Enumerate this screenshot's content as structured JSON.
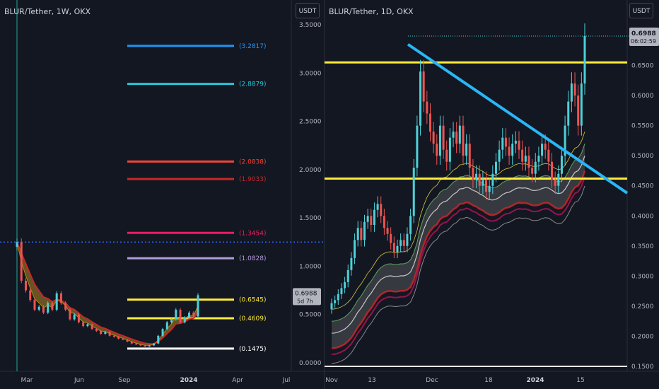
{
  "left": {
    "title": "BLUR/Tether, 1W, OKX",
    "currency_button": "USDT",
    "price_tag": "0.6988",
    "time_tag": "5d 7h",
    "y_ticks": [
      "3.5000",
      "3.0000",
      "2.5000",
      "2.0000",
      "1.5000",
      "1.0000",
      "0.5000",
      "0.0000"
    ],
    "x_ticks": [
      "Mar",
      "Jun",
      "Sep",
      "2024",
      "Apr",
      "Jul"
    ]
  },
  "right": {
    "title": "BLUR/Tether, 1D, OKX",
    "currency_button": "USDT",
    "price_tag": "0.6988",
    "time_tag": "06:02:59",
    "y_ticks": [
      "0.6500",
      "0.6000",
      "0.5500",
      "0.5000",
      "0.4500",
      "0.4000",
      "0.3500",
      "0.3000",
      "0.2500",
      "0.2000",
      "0.1500"
    ],
    "x_ticks": [
      "Nov",
      "13",
      "Dec",
      "18",
      "2024",
      "15"
    ]
  },
  "colors": {
    "background": "#131722",
    "up": "#4dd0d7",
    "down": "#ef5350",
    "support_yellow": "#ffeb3b",
    "trendline": "#29b6f6",
    "dotted_line": "#2962ff"
  },
  "chart_data": [
    {
      "type": "candlestick",
      "title": "BLUR/Tether, 1W, OKX",
      "ylim": [
        0,
        3.5
      ],
      "fib_levels": [
        {
          "label": "(3.2817)",
          "value": 3.2817,
          "color": "#2196f3"
        },
        {
          "label": "(2.8879)",
          "value": 2.8879,
          "color": "#26c6da"
        },
        {
          "label": "(2.0838)",
          "value": 2.0838,
          "color": "#f44336"
        },
        {
          "label": "(1.9033)",
          "value": 1.9033,
          "color": "#c62828"
        },
        {
          "label": "(1.3454)",
          "value": 1.3454,
          "color": "#e91e63"
        },
        {
          "label": "(1.0828)",
          "value": 1.0828,
          "color": "#b39ddb"
        },
        {
          "label": "(0.6545)",
          "value": 0.6545,
          "color": "#ffeb3b"
        },
        {
          "label": "(0.4609)",
          "value": 0.4609,
          "color": "#ffeb3b"
        },
        {
          "label": "(0.1475)",
          "value": 0.1475,
          "color": "#ffffff"
        }
      ],
      "dotted_level": 1.25,
      "closes": [
        1.25,
        0.85,
        0.75,
        0.65,
        0.55,
        0.58,
        0.52,
        0.62,
        0.55,
        0.72,
        0.62,
        0.55,
        0.45,
        0.5,
        0.42,
        0.38,
        0.4,
        0.35,
        0.33,
        0.3,
        0.32,
        0.28,
        0.27,
        0.25,
        0.24,
        0.22,
        0.2,
        0.19,
        0.18,
        0.17,
        0.18,
        0.2,
        0.28,
        0.35,
        0.42,
        0.45,
        0.55,
        0.42,
        0.47,
        0.52,
        0.48,
        0.7
      ]
    },
    {
      "type": "candlestick",
      "title": "BLUR/Tether, 1D, OKX",
      "ylim": [
        0.15,
        0.7
      ],
      "support_levels": [
        0.655,
        0.462
      ],
      "last_price": 0.6988,
      "closes": [
        0.255,
        0.26,
        0.27,
        0.28,
        0.29,
        0.31,
        0.33,
        0.36,
        0.38,
        0.36,
        0.39,
        0.4,
        0.385,
        0.41,
        0.42,
        0.4,
        0.38,
        0.37,
        0.355,
        0.34,
        0.35,
        0.36,
        0.35,
        0.37,
        0.4,
        0.48,
        0.55,
        0.64,
        0.59,
        0.57,
        0.54,
        0.52,
        0.5,
        0.55,
        0.51,
        0.49,
        0.53,
        0.54,
        0.52,
        0.55,
        0.5,
        0.52,
        0.48,
        0.46,
        0.47,
        0.45,
        0.46,
        0.44,
        0.45,
        0.47,
        0.49,
        0.51,
        0.53,
        0.515,
        0.5,
        0.52,
        0.525,
        0.51,
        0.49,
        0.5,
        0.48,
        0.47,
        0.49,
        0.5,
        0.52,
        0.51,
        0.49,
        0.46,
        0.45,
        0.47,
        0.5,
        0.55,
        0.59,
        0.62,
        0.6,
        0.55,
        0.62,
        0.6988
      ]
    }
  ]
}
